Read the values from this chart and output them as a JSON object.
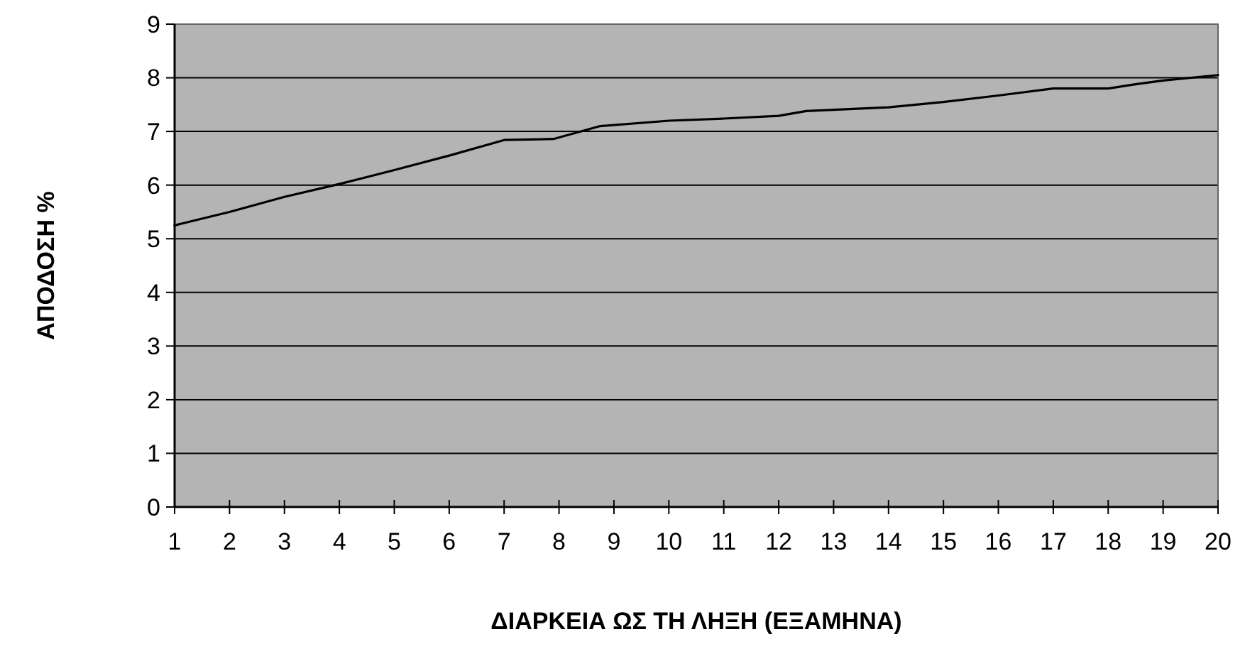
{
  "chart_data": {
    "type": "line",
    "xlabel": "ΔΙΑΡΚΕΙΑ ΩΣ ΤΗ ΛΗΞΗ (ΕΞΑΜΗΝΑ)",
    "ylabel": "ΑΠΟΔΟΣΗ %",
    "x": [
      1,
      2,
      3,
      4,
      5,
      6,
      7,
      7.9,
      8.75,
      10,
      11,
      12,
      12.5,
      14,
      15,
      16,
      17,
      18,
      18.5,
      19,
      20
    ],
    "series": [
      {
        "color": "#000000",
        "values": [
          5.25,
          5.5,
          5.78,
          6.02,
          6.28,
          6.55,
          6.84,
          6.86,
          7.1,
          7.2,
          7.24,
          7.29,
          7.38,
          7.45,
          7.55,
          7.67,
          7.8,
          7.8,
          7.88,
          7.95,
          8.05
        ]
      }
    ],
    "xlim": [
      1,
      20
    ],
    "xticks": [
      1,
      2,
      3,
      4,
      5,
      6,
      7,
      8,
      9,
      10,
      11,
      12,
      13,
      14,
      15,
      16,
      17,
      18,
      19,
      20
    ],
    "ylim": [
      0,
      9
    ],
    "yticks": [
      0,
      1,
      2,
      3,
      4,
      5,
      6,
      7,
      8,
      9
    ],
    "grid": "y",
    "marker": "none",
    "line_style": "solid"
  }
}
